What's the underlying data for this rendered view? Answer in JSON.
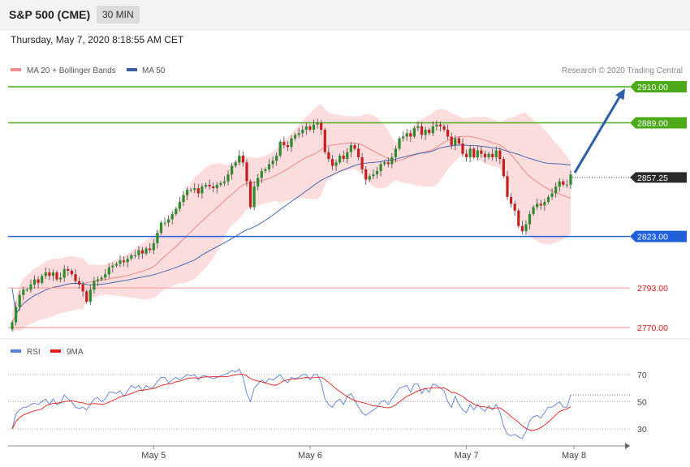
{
  "header": {
    "symbol": "S&P 500 (CME)",
    "timeframe": "30 MIN"
  },
  "datetime": "Thursday, May 7, 2020 8:18:55 AM CET",
  "price_panel": {
    "legend": [
      {
        "label": "MA 20 + Bollinger Bands",
        "color": "#f08c8c"
      },
      {
        "label": "MA 50",
        "color": "#3a5ea8"
      }
    ],
    "credit": "Research © 2020 Trading Central"
  },
  "rsi_panel": {
    "legend": [
      {
        "label": "RSI",
        "color": "#5b7fd6"
      },
      {
        "label": "9MA",
        "color": "#e02020"
      }
    ]
  },
  "colors": {
    "up": "#2e8b2e",
    "down": "#c81e1e",
    "resistance": "#4caa1a",
    "support": "#2060d8",
    "weak_support": "#f2a0a0",
    "band": "#fcd7d7",
    "arrow": "#2f5fa8",
    "current": "#2b2b2b"
  },
  "chart_data": [
    {
      "type": "candlestick",
      "x_ticks": [
        "May 5",
        "May 6",
        "May 7",
        "May 8"
      ],
      "ylim": [
        2758,
        2920
      ],
      "levels": [
        {
          "value": 2910.0,
          "label": "2910.00",
          "kind": "resistance"
        },
        {
          "value": 2889.0,
          "label": "2889.00",
          "kind": "resistance"
        },
        {
          "value": 2857.25,
          "label": "2857.25",
          "kind": "current"
        },
        {
          "value": 2823.0,
          "label": "2823.00",
          "kind": "support"
        },
        {
          "value": 2793.0,
          "label": "2793.00",
          "kind": "weak_support"
        },
        {
          "value": 2770.0,
          "label": "2770.00",
          "kind": "weak_support"
        }
      ],
      "close": [
        2773,
        2782,
        2789,
        2792,
        2792,
        2795,
        2798,
        2796,
        2800,
        2802,
        2800,
        2802,
        2798,
        2799,
        2804,
        2803,
        2801,
        2797,
        2795,
        2791,
        2785,
        2792,
        2797,
        2798,
        2799,
        2801,
        2805,
        2806,
        2807,
        2809,
        2808,
        2810,
        2812,
        2812,
        2815,
        2813,
        2816,
        2815,
        2819,
        2825,
        2831,
        2831,
        2833,
        2836,
        2839,
        2843,
        2847,
        2850,
        2850,
        2851,
        2848,
        2852,
        2853,
        2852,
        2851,
        2853,
        2854,
        2855,
        2859,
        2864,
        2866,
        2870,
        2866,
        2855,
        2840,
        2852,
        2857,
        2861,
        2862,
        2865,
        2867,
        2870,
        2878,
        2876,
        2875,
        2880,
        2882,
        2883,
        2885,
        2887,
        2885,
        2888,
        2889,
        2885,
        2872,
        2868,
        2864,
        2866,
        2870,
        2868,
        2872,
        2876,
        2874,
        2869,
        2862,
        2856,
        2858,
        2859,
        2861,
        2865,
        2866,
        2865,
        2869,
        2874,
        2880,
        2881,
        2883,
        2881,
        2886,
        2887,
        2882,
        2885,
        2883,
        2887,
        2888,
        2887,
        2885,
        2881,
        2876,
        2880,
        2877,
        2871,
        2869,
        2874,
        2869,
        2873,
        2871,
        2869,
        2871,
        2869,
        2873,
        2868,
        2858,
        2846,
        2842,
        2838,
        2829,
        2826,
        2830,
        2836,
        2840,
        2842,
        2841,
        2843,
        2846,
        2848,
        2852,
        2855,
        2853,
        2853,
        2859
      ],
      "rsi": [
        30,
        41,
        44,
        46,
        46,
        48,
        49,
        48,
        50,
        52,
        48,
        52,
        48,
        49,
        55,
        52,
        50,
        46,
        45,
        46,
        44,
        48,
        52,
        53,
        50,
        52,
        57,
        57,
        56,
        58,
        54,
        58,
        62,
        60,
        62,
        58,
        62,
        60,
        61,
        65,
        68,
        68,
        64,
        66,
        68,
        66,
        68,
        70,
        69,
        70,
        66,
        69,
        69,
        68,
        67,
        68,
        69,
        70,
        71,
        73,
        72,
        74,
        68,
        56,
        50,
        60,
        63,
        66,
        64,
        67,
        66,
        68,
        70,
        66,
        64,
        68,
        67,
        68,
        70,
        70,
        66,
        70,
        70,
        64,
        52,
        48,
        46,
        50,
        52,
        48,
        54,
        56,
        51,
        46,
        42,
        40,
        42,
        44,
        46,
        50,
        51,
        48,
        52,
        56,
        60,
        61,
        62,
        57,
        63,
        63,
        56,
        60,
        57,
        63,
        62,
        60,
        58,
        50,
        46,
        54,
        48,
        44,
        42,
        48,
        44,
        48,
        45,
        43,
        47,
        44,
        48,
        42,
        32,
        26,
        25,
        26,
        24,
        23,
        28,
        36,
        39,
        40,
        38,
        42,
        46,
        46,
        48,
        50,
        46,
        46,
        55
      ],
      "rsi_levels": [
        70,
        50,
        30
      ]
    }
  ]
}
